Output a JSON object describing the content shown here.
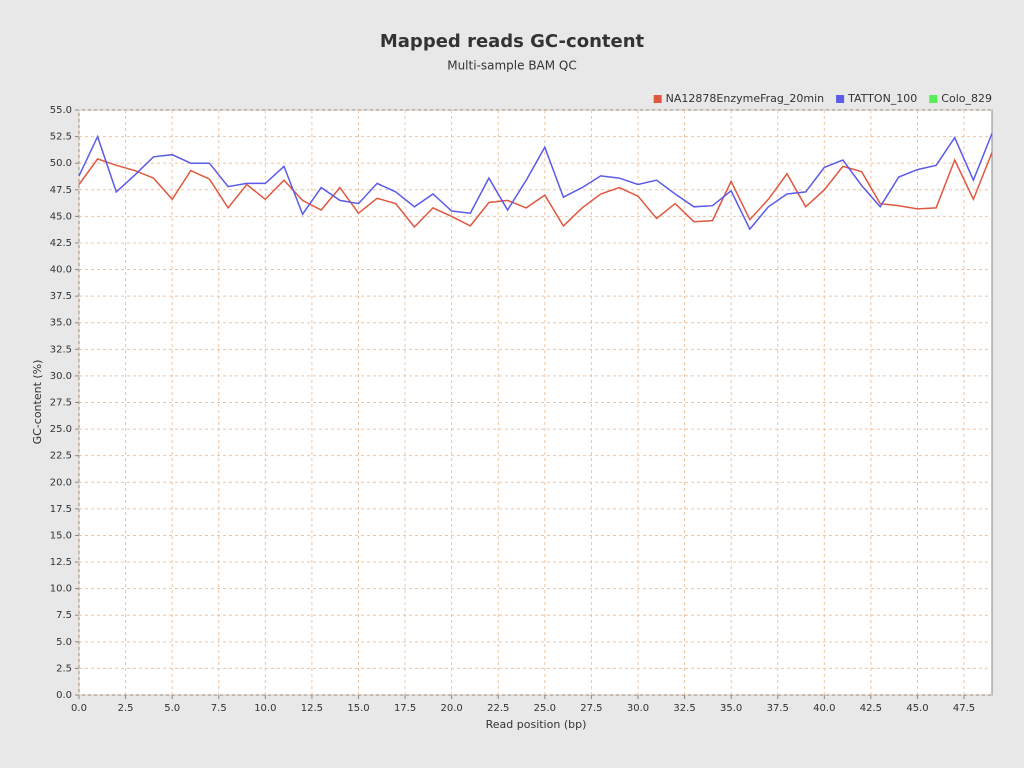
{
  "chart_data": {
    "type": "line",
    "title": "Mapped reads GC-content",
    "subtitle": "Multi-sample BAM QC",
    "xlabel": "Read position (bp)",
    "ylabel": "GC-content (%)",
    "x": [
      0,
      1,
      2,
      3,
      4,
      5,
      6,
      7,
      8,
      9,
      10,
      11,
      12,
      13,
      14,
      15,
      16,
      17,
      18,
      19,
      20,
      21,
      22,
      23,
      24,
      25,
      26,
      27,
      28,
      29,
      30,
      31,
      32,
      33,
      34,
      35,
      36,
      37,
      38,
      39,
      40,
      41,
      42,
      43,
      44,
      45,
      46,
      47,
      48,
      49
    ],
    "series": [
      {
        "name": "NA12878EnzymeFrag_20min",
        "color": "#e0573f",
        "values": [
          48.0,
          50.4,
          49.8,
          49.3,
          48.6,
          46.6,
          49.3,
          48.5,
          45.8,
          48.0,
          46.6,
          48.4,
          46.5,
          45.6,
          47.7,
          45.3,
          46.7,
          46.2,
          44.0,
          45.8,
          45.0,
          44.1,
          46.3,
          46.5,
          45.8,
          47.0,
          44.1,
          45.8,
          47.1,
          47.7,
          46.9,
          44.8,
          46.2,
          44.5,
          44.6,
          48.3,
          44.7,
          46.6,
          49.0,
          45.9,
          47.5,
          49.7,
          49.2,
          46.2,
          46.0,
          45.7,
          45.8,
          50.3,
          46.6,
          51.0
        ]
      },
      {
        "name": "TATTON_100",
        "color": "#5b5be8",
        "values": [
          48.8,
          52.5,
          47.3,
          48.9,
          50.6,
          50.8,
          50.0,
          50.0,
          47.8,
          48.1,
          48.1,
          49.7,
          45.2,
          47.7,
          46.5,
          46.2,
          48.1,
          47.3,
          45.9,
          47.1,
          45.5,
          45.3,
          48.6,
          45.6,
          48.4,
          51.5,
          46.8,
          47.7,
          48.8,
          48.6,
          48.0,
          48.4,
          47.1,
          45.9,
          46.0,
          47.4,
          43.8,
          45.9,
          47.1,
          47.3,
          49.6,
          50.3,
          47.9,
          45.9,
          48.7,
          49.4,
          49.8,
          52.4,
          48.4,
          52.8
        ]
      },
      {
        "name": "Colo_829",
        "color": "#55ee55",
        "values": [
          null,
          null,
          null,
          null,
          null,
          null,
          null,
          null,
          null,
          null,
          null,
          null,
          null,
          null,
          null,
          null,
          null,
          null,
          null,
          null,
          null,
          null,
          null,
          null,
          null,
          null,
          null,
          null,
          null,
          null,
          null,
          null,
          null,
          null,
          null,
          null,
          null,
          null,
          null,
          null,
          null,
          null,
          null,
          null,
          null,
          null,
          null,
          null,
          null,
          null
        ]
      }
    ],
    "xlim": [
      0,
      49
    ],
    "ylim": [
      0,
      55
    ],
    "xticks": [
      {
        "value": 0,
        "label": "0.0"
      },
      {
        "value": 2.5,
        "label": "2.5"
      },
      {
        "value": 5,
        "label": "5.0"
      },
      {
        "value": 7.5,
        "label": "7.5"
      },
      {
        "value": 10,
        "label": "10.0"
      },
      {
        "value": 12.5,
        "label": "12.5"
      },
      {
        "value": 15,
        "label": "15.0"
      },
      {
        "value": 17.5,
        "label": "17.5"
      },
      {
        "value": 20,
        "label": "20.0"
      },
      {
        "value": 22.5,
        "label": "22.5"
      },
      {
        "value": 25,
        "label": "25.0"
      },
      {
        "value": 27.5,
        "label": "27.5"
      },
      {
        "value": 30,
        "label": "30.0"
      },
      {
        "value": 32.5,
        "label": "32.5"
      },
      {
        "value": 35,
        "label": "35.0"
      },
      {
        "value": 37.5,
        "label": "37.5"
      },
      {
        "value": 40,
        "label": "40.0"
      },
      {
        "value": 42.5,
        "label": "42.5"
      },
      {
        "value": 45,
        "label": "45.0"
      },
      {
        "value": 47.5,
        "label": "47.5"
      }
    ],
    "yticks": [
      {
        "value": 0,
        "label": "0.0"
      },
      {
        "value": 2.5,
        "label": "2.5"
      },
      {
        "value": 5,
        "label": "5.0"
      },
      {
        "value": 7.5,
        "label": "7.5"
      },
      {
        "value": 10,
        "label": "10.0"
      },
      {
        "value": 12.5,
        "label": "12.5"
      },
      {
        "value": 15,
        "label": "15.0"
      },
      {
        "value": 17.5,
        "label": "17.5"
      },
      {
        "value": 20,
        "label": "20.0"
      },
      {
        "value": 22.5,
        "label": "22.5"
      },
      {
        "value": 25,
        "label": "25.0"
      },
      {
        "value": 27.5,
        "label": "27.5"
      },
      {
        "value": 30,
        "label": "30.0"
      },
      {
        "value": 32.5,
        "label": "32.5"
      },
      {
        "value": 35,
        "label": "35.0"
      },
      {
        "value": 37.5,
        "label": "37.5"
      },
      {
        "value": 40,
        "label": "40.0"
      },
      {
        "value": 42.5,
        "label": "42.5"
      },
      {
        "value": 45,
        "label": "45.0"
      },
      {
        "value": 47.5,
        "label": "47.5"
      },
      {
        "value": 50,
        "label": "50.0"
      },
      {
        "value": 52.5,
        "label": "52.5"
      },
      {
        "value": 55,
        "label": "55.0"
      }
    ],
    "grid": true,
    "legend": "top-right"
  }
}
